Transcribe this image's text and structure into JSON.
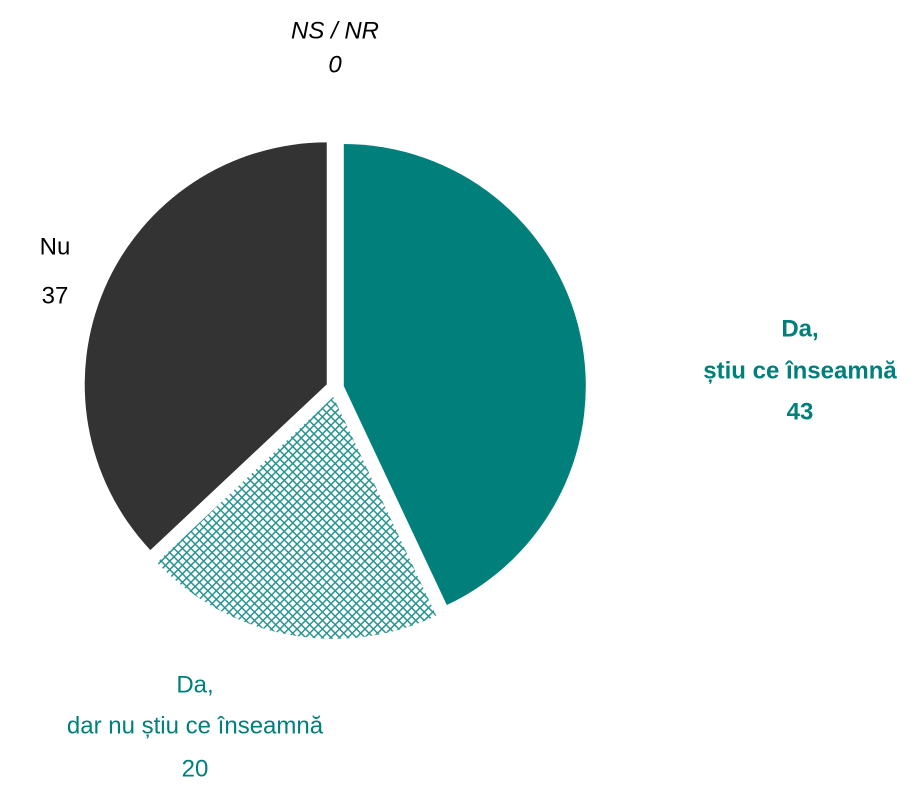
{
  "chart_data": {
    "type": "pie",
    "categories": [
      [
        "Da,",
        "știu ce înseamnă"
      ],
      [
        "Da,",
        "dar nu știu ce înseamnă"
      ],
      [
        "Nu"
      ],
      [
        "NS / NR"
      ]
    ],
    "values": [
      43,
      20,
      37,
      0
    ],
    "colors": [
      "#007f7b",
      "#007f7b",
      "#333333",
      "#999999"
    ],
    "hatch": [
      false,
      true,
      false,
      false
    ]
  }
}
